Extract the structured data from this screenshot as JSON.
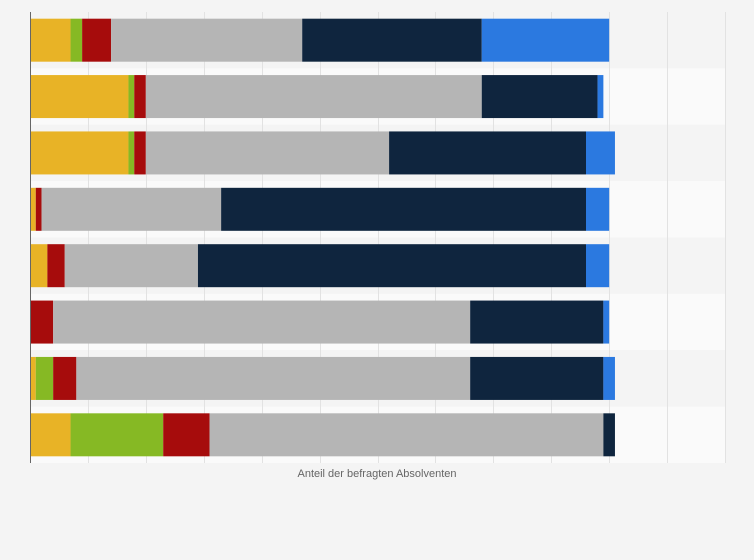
{
  "chart_data": {
    "type": "bar",
    "orientation": "horizontal",
    "stacked": true,
    "xlabel": "Anteil der befragten Absolventen",
    "ylabel": "",
    "xlim": [
      0,
      120
    ],
    "grid": true,
    "legend": "none",
    "categories": [
      "",
      "",
      "",
      "",
      "",
      "",
      "",
      ""
    ],
    "series": [
      {
        "color": "#e8b326",
        "values": [
          7,
          17,
          17,
          1,
          3,
          0,
          1,
          7
        ]
      },
      {
        "color": "#86b924",
        "values": [
          2,
          1,
          1,
          0,
          0,
          0,
          3,
          16
        ]
      },
      {
        "color": "#a60c0c",
        "values": [
          5,
          2,
          2,
          1,
          3,
          4,
          4,
          8
        ]
      },
      {
        "color": "#b5b5b5",
        "values": [
          33,
          58,
          42,
          31,
          23,
          72,
          68,
          68
        ]
      },
      {
        "color": "#0f253e",
        "values": [
          31,
          20,
          34,
          63,
          67,
          23,
          23,
          2
        ]
      },
      {
        "color": "#2b79e0",
        "values": [
          22,
          1,
          5,
          4,
          4,
          1,
          2,
          0
        ]
      }
    ]
  }
}
